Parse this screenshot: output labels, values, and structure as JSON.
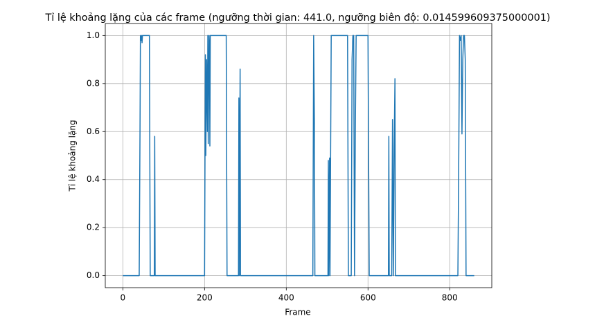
{
  "chart_data": {
    "type": "line",
    "title": "Tỉ lệ khoảng lặng của các frame (ngưỡng thời gian: 441.0, ngưỡng biên độ: 0.014599609375000001)",
    "x_label": "Frame",
    "y_label": "Tỉ lệ khoảng lặng",
    "color": "#1f77b4",
    "grid": true,
    "xlim": [
      -43,
      903
    ],
    "xticks": [
      0,
      200,
      400,
      600,
      800
    ],
    "ylim": [
      -0.05,
      1.05
    ],
    "yticks": [
      {
        "value": 0,
        "label": "0.0"
      },
      0.2,
      0.4,
      0.6,
      0.8,
      {
        "value": 1,
        "label": "1.0"
      }
    ],
    "x": [
      0,
      40,
      42,
      43,
      45,
      46,
      47,
      48,
      65,
      67,
      77,
      78,
      79,
      200,
      202,
      203,
      205,
      207,
      208,
      209,
      211,
      212,
      213,
      214,
      253,
      255,
      283,
      284,
      285,
      287,
      288,
      465,
      467,
      469,
      470,
      502,
      503,
      504,
      506,
      507,
      510,
      550,
      552,
      559,
      561,
      563,
      565,
      567,
      569,
      571,
      600,
      603,
      650,
      651,
      652,
      658,
      660,
      662,
      664,
      666,
      667,
      820,
      822,
      824,
      826,
      828,
      830,
      832,
      834,
      836,
      838,
      840,
      860
    ],
    "values": [
      0,
      0,
      0.61,
      1,
      0.98,
      1,
      0.97,
      1,
      1,
      0,
      0,
      0.58,
      0,
      0,
      0.92,
      0.5,
      0.9,
      0.6,
      1,
      0.55,
      1,
      0.95,
      0.54,
      1,
      1,
      0,
      0,
      0.74,
      0,
      0.86,
      0,
      0,
      1,
      0.6,
      0,
      0,
      0.48,
      0,
      0.49,
      0,
      1,
      1,
      0,
      0,
      0.9,
      1,
      1,
      0,
      0.6,
      1,
      1,
      0,
      0,
      0.58,
      0,
      0,
      0.65,
      0,
      0.54,
      0.82,
      0,
      0,
      0.45,
      1,
      0.98,
      1,
      0.59,
      0.9,
      1,
      1,
      0.9,
      0,
      0
    ]
  }
}
